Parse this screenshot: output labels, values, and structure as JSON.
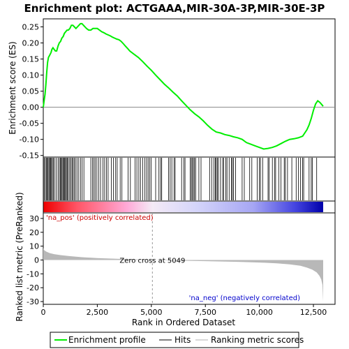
{
  "chart_data": {
    "type": "line",
    "title": "Enrichment plot: ACTGAAA,MIR-30A-3P,MIR-30E-3P",
    "xlabel": "Rank in Ordered Dataset",
    "ylabel_top": "Enrichment score (ES)",
    "ylabel_bottom": "Ranked list metric (PreRanked)",
    "x_range": [
      0,
      13500
    ],
    "x_ticks": [
      0,
      2500,
      5000,
      7500,
      10000,
      12500
    ],
    "x_tick_labels": [
      "0",
      "2,500",
      "5,000",
      "7,500",
      "10,000",
      "12,500"
    ],
    "es_ylim": [
      -0.155,
      0.275
    ],
    "es_ticks": [
      0.25,
      0.2,
      0.15,
      0.1,
      0.05,
      0.0,
      -0.05,
      -0.1,
      -0.15
    ],
    "es_tick_labels": [
      "0.25",
      "0.20",
      "0.15",
      "0.10",
      "0.05",
      "0.00",
      "-0.05",
      "-0.10",
      "-0.15"
    ],
    "metric_ylim": [
      -32,
      34
    ],
    "metric_ticks": [
      30,
      20,
      10,
      0,
      -10,
      -20,
      -30
    ],
    "metric_tick_labels": [
      "30",
      "20",
      "10",
      "0",
      "-10",
      "-20",
      "-30"
    ],
    "n_genes": 12950,
    "zero_cross": 5049,
    "zero_cross_label": "Zero cross at 5049",
    "pos_label": "'na_pos' (positively correlated)",
    "neg_label": "'na_neg' (negatively correlated)",
    "es_series": {
      "name": "Enrichment profile",
      "x": [
        0,
        40,
        80,
        120,
        160,
        200,
        240,
        280,
        320,
        360,
        400,
        450,
        500,
        560,
        620,
        680,
        740,
        800,
        860,
        920,
        980,
        1040,
        1100,
        1160,
        1230,
        1300,
        1370,
        1440,
        1510,
        1580,
        1650,
        1720,
        1790,
        1860,
        1930,
        2000,
        2100,
        2200,
        2300,
        2400,
        2500,
        2600,
        2700,
        2800,
        2900,
        3000,
        3100,
        3200,
        3300,
        3400,
        3500,
        3600,
        3700,
        3800,
        3900,
        4000,
        4200,
        4400,
        4600,
        4800,
        5000,
        5200,
        5400,
        5600,
        5800,
        6000,
        6200,
        6400,
        6600,
        6800,
        7000,
        7200,
        7400,
        7600,
        7800,
        8000,
        8200,
        8400,
        8600,
        8800,
        9000,
        9200,
        9400,
        9600,
        9800,
        10000,
        10200,
        10400,
        10600,
        10800,
        11000,
        11200,
        11400,
        11600,
        11800,
        12000,
        12200,
        12300,
        12400,
        12500,
        12600,
        12700,
        12800,
        12950
      ],
      "y": [
        0.0,
        0.02,
        0.04,
        0.07,
        0.11,
        0.14,
        0.155,
        0.16,
        0.165,
        0.17,
        0.18,
        0.185,
        0.18,
        0.175,
        0.175,
        0.19,
        0.2,
        0.205,
        0.215,
        0.22,
        0.23,
        0.235,
        0.24,
        0.24,
        0.245,
        0.255,
        0.255,
        0.25,
        0.245,
        0.25,
        0.255,
        0.26,
        0.26,
        0.255,
        0.25,
        0.245,
        0.24,
        0.24,
        0.245,
        0.245,
        0.245,
        0.24,
        0.235,
        0.232,
        0.228,
        0.225,
        0.222,
        0.218,
        0.215,
        0.212,
        0.21,
        0.205,
        0.198,
        0.19,
        0.183,
        0.175,
        0.165,
        0.155,
        0.142,
        0.128,
        0.115,
        0.1,
        0.086,
        0.072,
        0.06,
        0.047,
        0.035,
        0.02,
        0.006,
        -0.008,
        -0.02,
        -0.03,
        -0.042,
        -0.056,
        -0.068,
        -0.077,
        -0.08,
        -0.085,
        -0.088,
        -0.092,
        -0.095,
        -0.1,
        -0.11,
        -0.115,
        -0.12,
        -0.125,
        -0.13,
        -0.128,
        -0.125,
        -0.12,
        -0.113,
        -0.106,
        -0.1,
        -0.098,
        -0.095,
        -0.09,
        -0.07,
        -0.055,
        -0.035,
        -0.01,
        0.01,
        0.02,
        0.015,
        0.003
      ]
    },
    "metric_series": {
      "name": "Ranking metric scores",
      "x": [
        0,
        50,
        150,
        300,
        500,
        800,
        1200,
        1800,
        2500,
        3500,
        4500,
        5049,
        6000,
        7500,
        9000,
        10000,
        10800,
        11400,
        11900,
        12200,
        12450,
        12650,
        12780,
        12860,
        12920,
        12950
      ],
      "y": [
        8.5,
        7.0,
        6.0,
        5.0,
        4.2,
        3.5,
        2.8,
        2.0,
        1.4,
        0.8,
        0.3,
        0.0,
        -0.4,
        -0.8,
        -1.3,
        -1.8,
        -2.4,
        -3.2,
        -4.2,
        -5.5,
        -7.0,
        -9.0,
        -11.5,
        -14.0,
        -18.0,
        -30.0
      ]
    },
    "hits": [
      40,
      90,
      140,
      180,
      220,
      260,
      300,
      340,
      380,
      420,
      470,
      520,
      600,
      680,
      740,
      790,
      830,
      870,
      910,
      950,
      990,
      1030,
      1070,
      1110,
      1160,
      1220,
      1280,
      1330,
      1380,
      1430,
      1490,
      1560,
      1640,
      1720,
      1800,
      1880,
      2200,
      2280,
      2340,
      2400,
      2480,
      2560,
      2650,
      2760,
      2840,
      2920,
      3000,
      3150,
      3250,
      3350,
      3420,
      3560,
      3640,
      3920,
      4030,
      4250,
      4330,
      4420,
      4500,
      4600,
      4700,
      4780,
      4850,
      4920,
      4990,
      5200,
      5350,
      5430,
      5480,
      5800,
      5870,
      5950,
      6050,
      6100,
      6400,
      6500,
      6560,
      6800,
      6850,
      6900,
      6950,
      7000,
      7050,
      7200,
      7300,
      7700,
      7800,
      7900,
      7960,
      8000,
      8050,
      8100,
      8200,
      8300,
      8350,
      8450,
      8500,
      8600,
      8700,
      8750,
      8800,
      8900,
      9200,
      9300,
      9550,
      9650,
      9900,
      10000,
      10050,
      10150,
      10400,
      10450,
      10600,
      10700,
      10750,
      10900,
      11000,
      11150,
      11200,
      11300,
      11500,
      11700,
      11800,
      11900,
      12000,
      12050,
      12300,
      12400,
      12450,
      12650
    ]
  },
  "legend": {
    "items": [
      {
        "label": "Enrichment profile",
        "color": "#00ee00"
      },
      {
        "label": "Hits",
        "color": "#000000"
      },
      {
        "label": "Ranking metric scores",
        "color": "#b0b0b0"
      }
    ]
  },
  "colors": {
    "es_line": "#00ee00",
    "pos_text": "#cc0000",
    "neg_text": "#0000cc",
    "metric_fill": "#b8b8b8"
  }
}
